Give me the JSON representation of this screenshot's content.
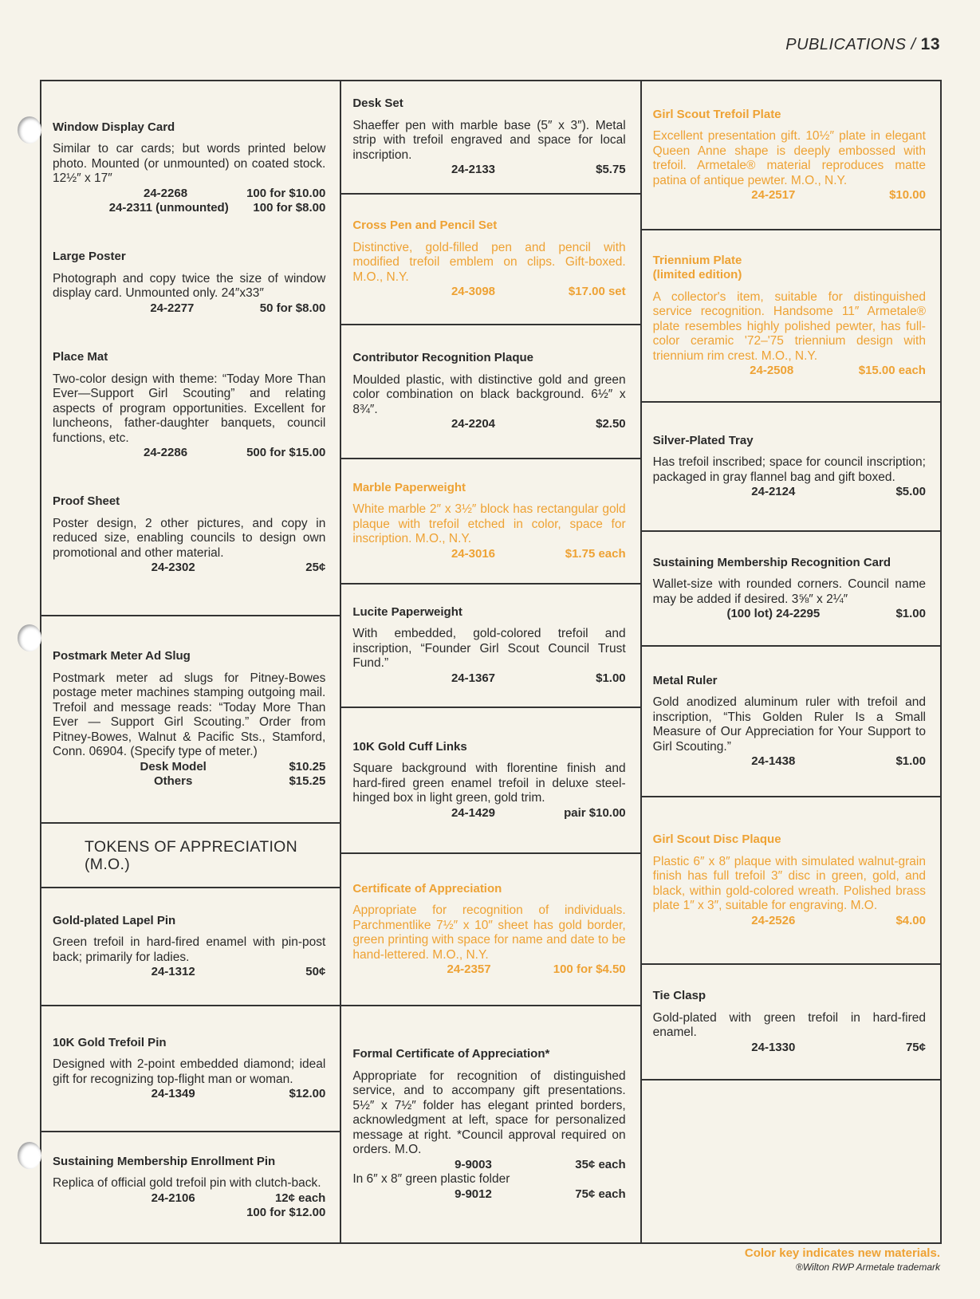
{
  "header": {
    "section": "PUBLICATIONS /",
    "page": "13"
  },
  "new_color": "#eea234",
  "columns": [
    {
      "cells": [
        {
          "items": [
            {
              "title": "Window Display Card",
              "body": [
                {
                  "text": "Similar to car cards; but words printed below photo. Mounted (or unmounted) on coated stock. 12½″ x 17″"
                },
                {
                  "rows": [
                    {
                      "code": "24-2268",
                      "price": "100 for $10.00"
                    },
                    {
                      "code": "24-2311 (unmounted)",
                      "price": "100 for $8.00"
                    }
                  ]
                }
              ]
            },
            {
              "title": "Large Poster",
              "body": [
                {
                  "text": "Photograph and copy twice the size of window display card. Unmounted only. 24″x33″"
                },
                {
                  "rows": [
                    {
                      "code": "24-2277",
                      "price": "50 for $8.00"
                    }
                  ]
                }
              ]
            },
            {
              "title": "Place Mat",
              "body": [
                {
                  "text": "Two-color design with theme: “Today More Than Ever—Support Girl Scouting” and relating aspects of program opportunities. Excellent for luncheons, father-daughter banquets, council functions, etc."
                },
                {
                  "rows": [
                    {
                      "code": "24-2286",
                      "price": "500 for $15.00"
                    }
                  ]
                }
              ]
            },
            {
              "title": "Proof Sheet",
              "body": [
                {
                  "text": "Poster design, 2 other pictures, and copy in reduced size, enabling councils to design own promotional and other material."
                },
                {
                  "rows": [
                    {
                      "code": "24-2302",
                      "price": "25¢"
                    }
                  ]
                }
              ]
            }
          ]
        },
        {
          "items": [
            {
              "title": "Postmark Meter Ad Slug",
              "body": [
                {
                  "text": "Postmark meter ad slugs for Pitney-Bowes postage meter machines stamping outgoing mail. Trefoil and message reads: “Today More Than Ever — Support Girl Scouting.” Order from Pitney-Bowes, Walnut & Pacific Sts., Stamford, Conn. 06904. (Specify type of meter.)"
                },
                {
                  "rows": [
                    {
                      "code": "Desk Model",
                      "price": "$10.25"
                    },
                    {
                      "code": "Others",
                      "price": "$15.25"
                    }
                  ]
                }
              ]
            }
          ]
        },
        {
          "items": [
            {
              "heading": "TOKENS OF APPRECIATION",
              "heading2": "(M.O.)"
            }
          ]
        },
        {
          "items": [
            {
              "title": "Gold-plated Lapel Pin",
              "body": [
                {
                  "text": "Green trefoil in hard-fired enamel with pin-post back; primarily for ladies."
                },
                {
                  "rows": [
                    {
                      "code": "24-1312",
                      "price": "50¢"
                    }
                  ]
                }
              ]
            }
          ]
        },
        {
          "items": [
            {
              "title": "10K Gold Trefoil Pin",
              "body": [
                {
                  "text": "Designed with 2-point embedded diamond; ideal gift for recognizing top-flight man or woman."
                },
                {
                  "rows": [
                    {
                      "code": "24-1349",
                      "price": "$12.00"
                    }
                  ]
                }
              ]
            }
          ]
        },
        {
          "items": [
            {
              "title": "Sustaining Membership Enrollment Pin",
              "body": [
                {
                  "text": "Replica of official gold trefoil pin with clutch-back."
                },
                {
                  "rows": [
                    {
                      "code": "24-2106",
                      "price": "12¢ each"
                    },
                    {
                      "price": "100 for $12.00"
                    }
                  ]
                }
              ]
            }
          ]
        }
      ]
    },
    {
      "cells": [
        {
          "items": [
            {
              "title": "Desk Set",
              "body": [
                {
                  "text": "Shaeffer pen with marble base (5″ x 3″). Metal strip with trefoil engraved and space for local inscription."
                },
                {
                  "rows": [
                    {
                      "code": "24-2133",
                      "price": "$5.75"
                    }
                  ]
                }
              ]
            }
          ]
        },
        {
          "items": [
            {
              "title": "Cross Pen and Pencil Set",
              "new": true,
              "body": [
                {
                  "text": "Distinctive, gold-filled pen and pencil with modified trefoil emblem on clips. Gift-boxed. M.O., N.Y."
                },
                {
                  "rows": [
                    {
                      "code": "24-3098",
                      "price": "$17.00 set"
                    }
                  ]
                }
              ]
            }
          ]
        },
        {
          "items": [
            {
              "title": "Contributor Recognition Plaque",
              "body": [
                {
                  "text": "Moulded plastic, with distinctive gold and green color combination on black background. 6½″ x 8¾″."
                },
                {
                  "rows": [
                    {
                      "code": "24-2204",
                      "price": "$2.50"
                    }
                  ]
                }
              ]
            }
          ]
        },
        {
          "items": [
            {
              "title": "Marble Paperweight",
              "new": true,
              "body": [
                {
                  "text": "White marble 2″ x 3½″ block has rectangular gold plaque with trefoil etched in color, space for inscription. M.O., N.Y."
                },
                {
                  "rows": [
                    {
                      "code": "24-3016",
                      "price": "$1.75 each"
                    }
                  ]
                }
              ]
            }
          ]
        },
        {
          "items": [
            {
              "title": "Lucite Paperweight",
              "body": [
                {
                  "text": "With embedded, gold-colored trefoil and inscription, “Founder Girl Scout Council Trust Fund.”"
                },
                {
                  "rows": [
                    {
                      "code": "24-1367",
                      "price": "$1.00"
                    }
                  ]
                }
              ]
            }
          ]
        },
        {
          "items": [
            {
              "title": "10K Gold Cuff Links",
              "body": [
                {
                  "text": "Square background with florentine finish and hard-fired green enamel trefoil in deluxe steel-hinged box in light green, gold trim."
                },
                {
                  "rows": [
                    {
                      "code": "24-1429",
                      "price": "pair $10.00"
                    }
                  ]
                }
              ]
            }
          ]
        },
        {
          "items": [
            {
              "title": "Certificate of Appreciation",
              "new": true,
              "body": [
                {
                  "text": "Appropriate for recognition of individuals. Parchmentlike 7½″ x 10″ sheet has gold border, green printing with space for name and date to be hand-lettered. M.O., N.Y."
                },
                {
                  "rows": [
                    {
                      "code": "24-2357",
                      "price": "100 for $4.50"
                    }
                  ]
                }
              ]
            }
          ]
        },
        {
          "items": [
            {
              "title": "Formal Certificate of Appreciation*",
              "body": [
                {
                  "text": "Appropriate for recognition of distinguished service, and to accompany gift presentations. 5½″ x 7½″ folder has elegant printed borders, acknowledgment at left, space for personalized message at right. *Council approval required on orders. M.O."
                },
                {
                  "rows": [
                    {
                      "code": "9-9003",
                      "price": "35¢ each"
                    }
                  ]
                },
                {
                  "text": "In 6″ x 8″ green plastic folder"
                },
                {
                  "rows": [
                    {
                      "code": "9-9012",
                      "price": "75¢ each"
                    }
                  ]
                }
              ]
            }
          ]
        }
      ]
    },
    {
      "cells": [
        {
          "items": [
            {
              "title": "Girl Scout Trefoil Plate",
              "new": true,
              "body": [
                {
                  "text": "Excellent presentation gift. 10½″ plate in elegant Queen Anne shape is deeply embossed with trefoil. Armetale® material reproduces matte patina of antique pewter. M.O., N.Y."
                },
                {
                  "rows": [
                    {
                      "code": "24-2517",
                      "price": "$10.00"
                    }
                  ]
                }
              ]
            }
          ]
        },
        {
          "items": [
            {
              "title": "Triennium Plate",
              "subtitle": "(limited edition)",
              "new": true,
              "body": [
                {
                  "text": "A collector's item, suitable for distinguished service recognition. Handsome 11″ Armetale® plate resembles highly polished pewter, has full-color ceramic '72–'75 triennium design with triennium rim crest. M.O., N.Y."
                },
                {
                  "rows": [
                    {
                      "code": "24-2508",
                      "price": "$15.00 each"
                    }
                  ]
                }
              ]
            }
          ]
        },
        {
          "items": [
            {
              "title": "Silver-Plated Tray",
              "body": [
                {
                  "text": "Has trefoil inscribed; space for council inscription; packaged in gray flannel bag and gift boxed."
                },
                {
                  "rows": [
                    {
                      "code": "24-2124",
                      "price": "$5.00"
                    }
                  ]
                }
              ]
            }
          ]
        },
        {
          "items": [
            {
              "title": "Sustaining Membership Recognition Card",
              "body": [
                {
                  "text": "Wallet-size with rounded corners. Council name may be added if desired. 3⅝″ x 2¼″"
                },
                {
                  "rows": [
                    {
                      "code": "(100 lot) 24-2295",
                      "price": "$1.00"
                    }
                  ]
                }
              ]
            }
          ]
        },
        {
          "items": [
            {
              "title": "Metal Ruler",
              "body": [
                {
                  "text": "Gold anodized aluminum ruler with trefoil and inscription, “This Golden Ruler Is a Small Measure of Our Appreciation for Your Support to Girl Scouting.”"
                },
                {
                  "rows": [
                    {
                      "code": "24-1438",
                      "price": "$1.00"
                    }
                  ]
                }
              ]
            }
          ]
        },
        {
          "items": [
            {
              "title": "Girl Scout Disc Plaque",
              "new": true,
              "body": [
                {
                  "text": "Plastic 6″ x 8″ plaque with simulated walnut-grain finish has full trefoil 3″ disc in green, gold, and black, within gold-colored wreath. Polished brass plate 1″ x 3″, suitable for engraving. M.O."
                },
                {
                  "rows": [
                    {
                      "code": "24-2526",
                      "price": "$4.00"
                    }
                  ]
                }
              ]
            }
          ]
        },
        {
          "items": [
            {
              "title": "Tie Clasp",
              "body": [
                {
                  "text": "Gold-plated with green trefoil in hard-fired enamel."
                },
                {
                  "rows": [
                    {
                      "code": "24-1330",
                      "price": "75¢"
                    }
                  ]
                }
              ]
            }
          ]
        },
        {
          "items": []
        }
      ]
    }
  ],
  "footer": {
    "key": "Color key indicates new materials.",
    "trademark": "®Wilton RWP Armetale trademark"
  }
}
